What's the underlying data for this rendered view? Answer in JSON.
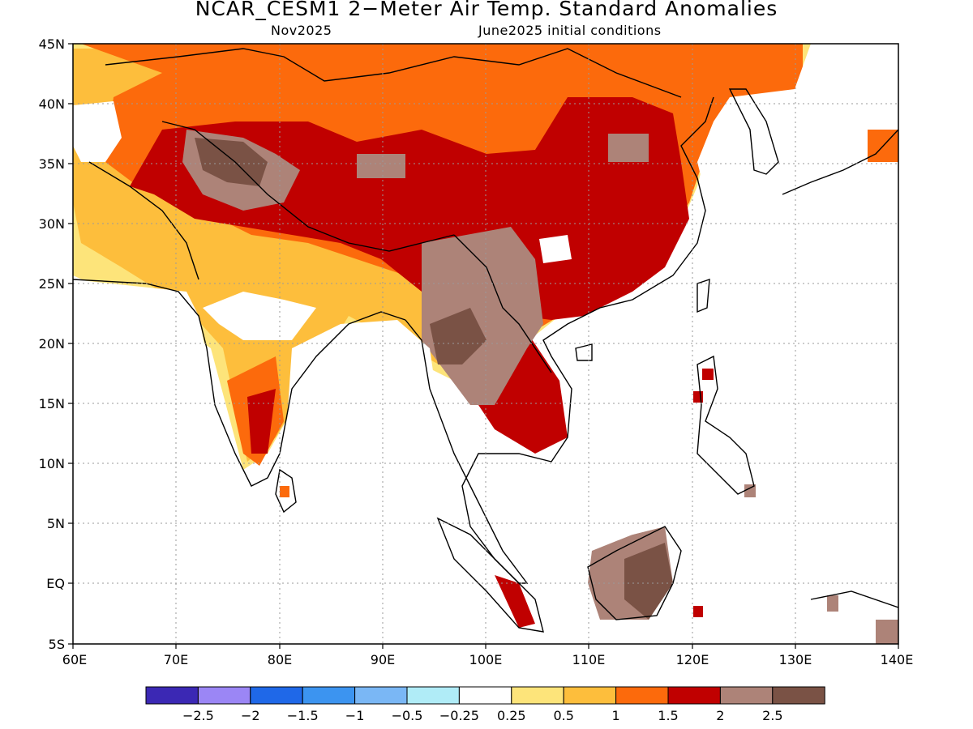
{
  "title": "NCAR_CESM1 2−Meter Air Temp. Standard Anomalies",
  "subtitle_left": "Nov2025",
  "subtitle_right": "June2025 initial conditions",
  "lat_ticks": [
    "45N",
    "40N",
    "35N",
    "30N",
    "25N",
    "20N",
    "15N",
    "10N",
    "5N",
    "EQ",
    "5S"
  ],
  "lon_ticks": [
    "60E",
    "70E",
    "80E",
    "90E",
    "100E",
    "110E",
    "120E",
    "130E",
    "140E"
  ],
  "colorbar": {
    "colors": [
      "#3b28b4",
      "#9b86f5",
      "#1f68e8",
      "#3c94f0",
      "#7ab7f5",
      "#b0ecf7",
      "#ffffff",
      "#fde47a",
      "#fdbe3c",
      "#fc6a0c",
      "#c00000",
      "#ad8378",
      "#7a5245"
    ],
    "labels": [
      "−2.5",
      "−2",
      "−1.5",
      "−1",
      "−0.5",
      "−0.25",
      "0.25",
      "0.5",
      "1",
      "1.5",
      "2",
      "2.5"
    ]
  },
  "map_data": {
    "lon_range": [
      60,
      140
    ],
    "lat_range": [
      -5,
      45
    ],
    "field": "2-meter air temperature standard anomaly",
    "regions": [
      {
        "name": "Tibetan Plateau / southern China",
        "level": "2 to 2.5"
      },
      {
        "name": "Indochina interior",
        "level": ">2.5"
      },
      {
        "name": "Borneo",
        "level": ">2.5"
      },
      {
        "name": "Mongolia / Central Asia",
        "level": "0.5 to 1.5"
      }
    ]
  }
}
